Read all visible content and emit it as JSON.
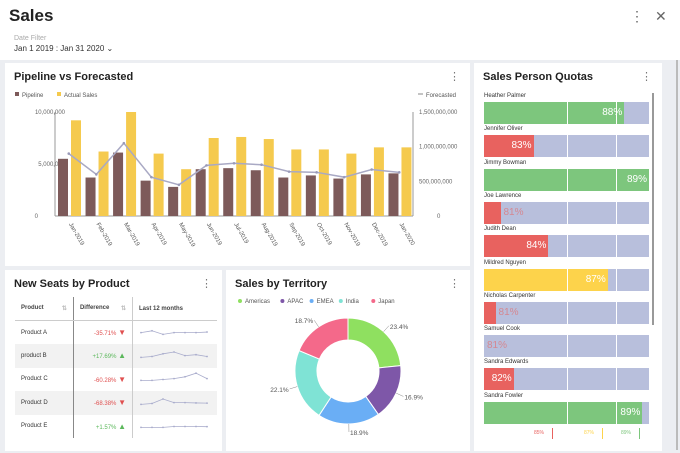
{
  "header": {
    "title": "Sales",
    "filter_label": "Date Filter",
    "filter_value": "Jan 1 2019 : Jan 31 2020",
    "chevron": "⌄",
    "more": "⋮",
    "close": "✕"
  },
  "pipeline": {
    "title": "Pipeline vs Forecasted",
    "more": "⋮"
  },
  "chart_data": {
    "type": "bar",
    "title": "Pipeline vs Forecasted",
    "categories": [
      "Jan-2019",
      "Feb-2019",
      "Mar-2019",
      "Apr-2019",
      "May-2019",
      "Jun-2019",
      "Jul-2019",
      "Aug-2019",
      "Sep-2019",
      "Oct-2019",
      "Nov-2019",
      "Dec-2019",
      "Jan-2020"
    ],
    "series": [
      {
        "name": "Pipeline",
        "color": "#7d5a5a",
        "axis": "left",
        "values": [
          5500000,
          3700000,
          6100000,
          3400000,
          2800000,
          4500000,
          4600000,
          4400000,
          3700000,
          3900000,
          3600000,
          4000000,
          4100000
        ]
      },
      {
        "name": "Actual Sales",
        "color": "#f5ca4e",
        "axis": "left",
        "values": [
          9200000,
          6200000,
          10000000,
          6000000,
          4500000,
          7500000,
          7600000,
          7400000,
          6400000,
          6400000,
          6000000,
          6600000,
          6600000
        ]
      },
      {
        "name": "Forecasted",
        "type": "line",
        "color": "#a9a9c4",
        "axis": "right",
        "values": [
          900000000,
          600000000,
          1050000000,
          560000000,
          450000000,
          730000000,
          760000000,
          740000000,
          640000000,
          630000000,
          560000000,
          670000000,
          630000000
        ]
      }
    ],
    "ylim": [
      0,
      10000000
    ],
    "yticks": [
      "0",
      "5,000,000",
      "10,000,000"
    ],
    "y2lim": [
      0,
      1500000000
    ],
    "y2ticks": [
      "0",
      "500,000,000",
      "1,000,000,000",
      "1,500,000,000"
    ],
    "legend": "top"
  },
  "quotas": {
    "title": "Sales Person Quotas",
    "more": "⋮",
    "people": [
      {
        "name": "Heather Palmer",
        "pct": "88%",
        "fill": 85,
        "status": "green"
      },
      {
        "name": "Jennifer Oliver",
        "pct": "83%",
        "fill": 30,
        "status": "red"
      },
      {
        "name": "Jimmy Bowman",
        "pct": "89%",
        "fill": 100,
        "status": "green"
      },
      {
        "name": "Joe Lawrence",
        "pct": "81%",
        "fill": 10,
        "status": "red"
      },
      {
        "name": "Judith Dean",
        "pct": "84%",
        "fill": 39,
        "status": "red"
      },
      {
        "name": "Mildred Nguyen",
        "pct": "87%",
        "fill": 75,
        "status": "yellow"
      },
      {
        "name": "Nicholas Carpenter",
        "pct": "81%",
        "fill": 7,
        "status": "red"
      },
      {
        "name": "Samuel Cook",
        "pct": "81%",
        "fill": 0,
        "status": "red"
      },
      {
        "name": "Sandra Edwards",
        "pct": "82%",
        "fill": 18,
        "status": "red"
      },
      {
        "name": "Sandra Fowler",
        "pct": "89%",
        "fill": 96,
        "status": "green"
      }
    ],
    "thresholds": [
      {
        "label": "85%",
        "color": "#e8625f"
      },
      {
        "label": "87%",
        "color": "#fdd34b"
      },
      {
        "label": "89%",
        "color": "#7dc67d"
      }
    ],
    "colors": {
      "green": "#7dc67d",
      "red": "#e8625f",
      "yellow": "#fdd34b",
      "track": "#b8bfdc"
    }
  },
  "seats": {
    "title": "New Seats by Product",
    "more": "⋮",
    "columns": [
      "Product",
      "Difference",
      "Last 12 months"
    ],
    "rows": [
      {
        "product": "Product A",
        "diff": "-35.71%",
        "trend": "down",
        "spark": [
          3,
          4,
          2,
          3,
          3,
          3,
          3.3
        ]
      },
      {
        "product": "product B",
        "diff": "+17.69%",
        "trend": "up",
        "spark": [
          2,
          2.5,
          4,
          5,
          3,
          3.5,
          2.5
        ]
      },
      {
        "product": "Product C",
        "diff": "-60.28%",
        "trend": "down",
        "spark": [
          2,
          2,
          2.5,
          3,
          4,
          6,
          3
        ]
      },
      {
        "product": "Product D",
        "diff": "-68.38%",
        "trend": "down",
        "spark": [
          2,
          2.5,
          5,
          3,
          3,
          2.8,
          2.7
        ]
      },
      {
        "product": "Product E",
        "diff": "+1.57%",
        "trend": "up",
        "spark": [
          2,
          2,
          2,
          2.5,
          2.5,
          2.5,
          2.4
        ]
      }
    ]
  },
  "territory": {
    "title": "Sales by Territory",
    "more": "⋮",
    "chart_data": {
      "type": "pie",
      "slices": [
        {
          "name": "Americas",
          "value": 23.4,
          "label": "23.4%",
          "color": "#8fe060"
        },
        {
          "name": "APAC",
          "value": 16.9,
          "label": "16.9%",
          "color": "#7e57a8"
        },
        {
          "name": "EMEA",
          "value": 18.9,
          "label": "18.9%",
          "color": "#6aaef5"
        },
        {
          "name": "India",
          "value": 22.1,
          "label": "22.1%",
          "color": "#7fe3d5"
        },
        {
          "name": "Japan",
          "value": 18.7,
          "label": "18.7%",
          "color": "#f4698a"
        }
      ],
      "legend": "top",
      "donut": true
    }
  }
}
